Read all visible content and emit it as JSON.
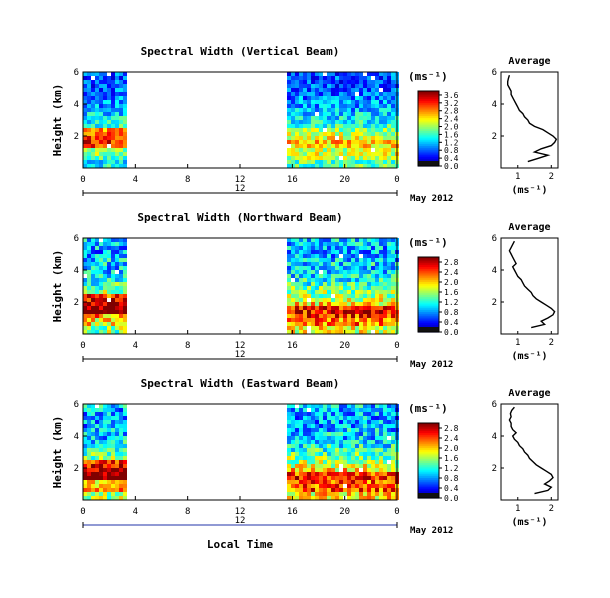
{
  "figure": {
    "xlabel": "Local Time",
    "date_label": "May 2012",
    "day_tick_label": "12",
    "ylabel": "Height (km)",
    "unit_label": "(ms⁻¹)",
    "avg_title": "Average",
    "avg_xlabel": "(ms⁻¹)"
  },
  "chart_data": [
    {
      "type": "heatmap",
      "title": "Spectral Width (Vertical Beam)",
      "x_ticks": [
        "0",
        "4",
        "8",
        "12",
        "16",
        "20",
        "0"
      ],
      "x_range_hours": [
        0,
        24
      ],
      "y_ticks": [
        "2",
        "4",
        "6"
      ],
      "y_range_km": [
        0,
        6
      ],
      "data_gap_hours": [
        3.4,
        15.6
      ],
      "colorbar": {
        "ticks": [
          "0.0",
          "0.4",
          "0.8",
          "1.2",
          "1.6",
          "2.0",
          "2.4",
          "2.8",
          "3.2",
          "3.6"
        ],
        "range": [
          0,
          3.8
        ]
      },
      "average_profile": {
        "x_ticks": [
          "1",
          "2"
        ],
        "x_range": [
          0.5,
          2.2
        ],
        "height_km": [
          0.4,
          0.6,
          0.8,
          1.0,
          1.2,
          1.4,
          1.6,
          1.8,
          2.0,
          2.2,
          2.4,
          2.6,
          2.8,
          3.0,
          3.2,
          3.4,
          3.6,
          3.8,
          4.0,
          4.2,
          4.4,
          4.6,
          4.8,
          5.0,
          5.2,
          5.4,
          5.6,
          5.8
        ],
        "width_ms": [
          1.3,
          1.6,
          1.9,
          1.5,
          1.7,
          2.0,
          2.1,
          2.15,
          2.05,
          1.9,
          1.75,
          1.5,
          1.35,
          1.3,
          1.2,
          1.15,
          1.05,
          1.0,
          0.95,
          0.9,
          0.85,
          0.8,
          0.8,
          0.75,
          0.7,
          0.7,
          0.72,
          0.75
        ]
      }
    },
    {
      "type": "heatmap",
      "title": "Spectral Width (Northward Beam)",
      "x_ticks": [
        "0",
        "4",
        "8",
        "12",
        "16",
        "20",
        "0"
      ],
      "x_range_hours": [
        0,
        24
      ],
      "y_ticks": [
        "2",
        "4",
        "6"
      ],
      "y_range_km": [
        0,
        6
      ],
      "data_gap_hours": [
        3.4,
        15.6
      ],
      "colorbar": {
        "ticks": [
          "0.0",
          "0.4",
          "0.8",
          "1.2",
          "1.6",
          "2.0",
          "2.4",
          "2.8"
        ],
        "range": [
          0,
          3.0
        ]
      },
      "average_profile": {
        "x_ticks": [
          "1",
          "2"
        ],
        "x_range": [
          0.5,
          2.2
        ],
        "height_km": [
          0.4,
          0.6,
          0.8,
          1.0,
          1.2,
          1.4,
          1.6,
          1.8,
          2.0,
          2.2,
          2.4,
          2.6,
          2.8,
          3.0,
          3.2,
          3.4,
          3.6,
          3.8,
          4.0,
          4.2,
          4.4,
          4.6,
          4.8,
          5.0,
          5.2,
          5.4,
          5.6,
          5.8
        ],
        "width_ms": [
          1.4,
          1.8,
          1.7,
          1.9,
          2.05,
          2.1,
          2.0,
          1.85,
          1.7,
          1.55,
          1.45,
          1.4,
          1.3,
          1.2,
          1.15,
          1.1,
          1.0,
          0.95,
          0.9,
          0.85,
          0.95,
          0.9,
          0.85,
          0.8,
          0.75,
          0.8,
          0.85,
          0.9
        ]
      }
    },
    {
      "type": "heatmap",
      "title": "Spectral Width (Eastward Beam)",
      "x_ticks": [
        "0",
        "4",
        "8",
        "12",
        "16",
        "20",
        "0"
      ],
      "x_range_hours": [
        0,
        24
      ],
      "y_ticks": [
        "2",
        "4",
        "6"
      ],
      "y_range_km": [
        0,
        6
      ],
      "data_gap_hours": [
        3.4,
        15.6
      ],
      "colorbar": {
        "ticks": [
          "0.0",
          "0.4",
          "0.8",
          "1.2",
          "1.6",
          "2.0",
          "2.4",
          "2.8"
        ],
        "range": [
          0,
          3.0
        ]
      },
      "average_profile": {
        "x_ticks": [
          "1",
          "2"
        ],
        "x_range": [
          0.5,
          2.2
        ],
        "height_km": [
          0.4,
          0.6,
          0.8,
          1.0,
          1.2,
          1.4,
          1.6,
          1.8,
          2.0,
          2.2,
          2.4,
          2.6,
          2.8,
          3.0,
          3.2,
          3.4,
          3.6,
          3.8,
          4.0,
          4.2,
          4.4,
          4.6,
          4.8,
          5.0,
          5.2,
          5.4,
          5.6,
          5.8
        ],
        "width_ms": [
          1.5,
          1.9,
          2.0,
          1.8,
          1.95,
          2.05,
          2.0,
          1.85,
          1.7,
          1.55,
          1.45,
          1.35,
          1.3,
          1.2,
          1.15,
          1.05,
          1.0,
          0.9,
          0.85,
          0.95,
          0.85,
          0.8,
          0.8,
          0.75,
          0.8,
          0.78,
          0.82,
          0.9
        ]
      }
    }
  ]
}
